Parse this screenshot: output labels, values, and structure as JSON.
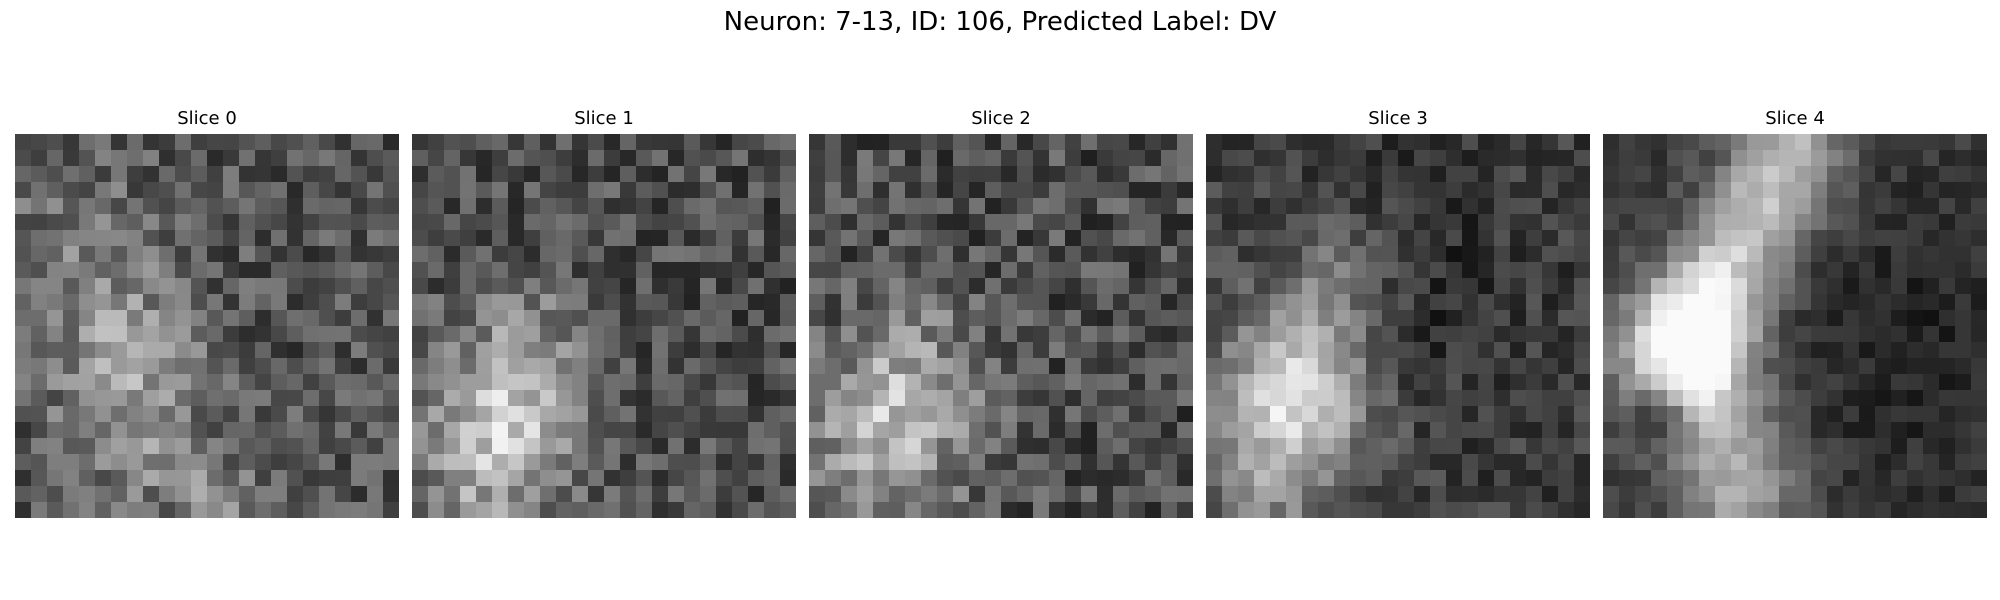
{
  "figure": {
    "title": "Neuron: 7-13, ID: 106, Predicted Label: DV"
  },
  "panels": [
    {
      "title": "Slice 0",
      "colormap": "gray"
    },
    {
      "title": "Slice 1",
      "colormap": "gray"
    },
    {
      "title": "Slice 2",
      "colormap": "gray"
    },
    {
      "title": "Slice 3",
      "colormap": "gray"
    },
    {
      "title": "Slice 4",
      "colormap": "gray"
    }
  ]
}
